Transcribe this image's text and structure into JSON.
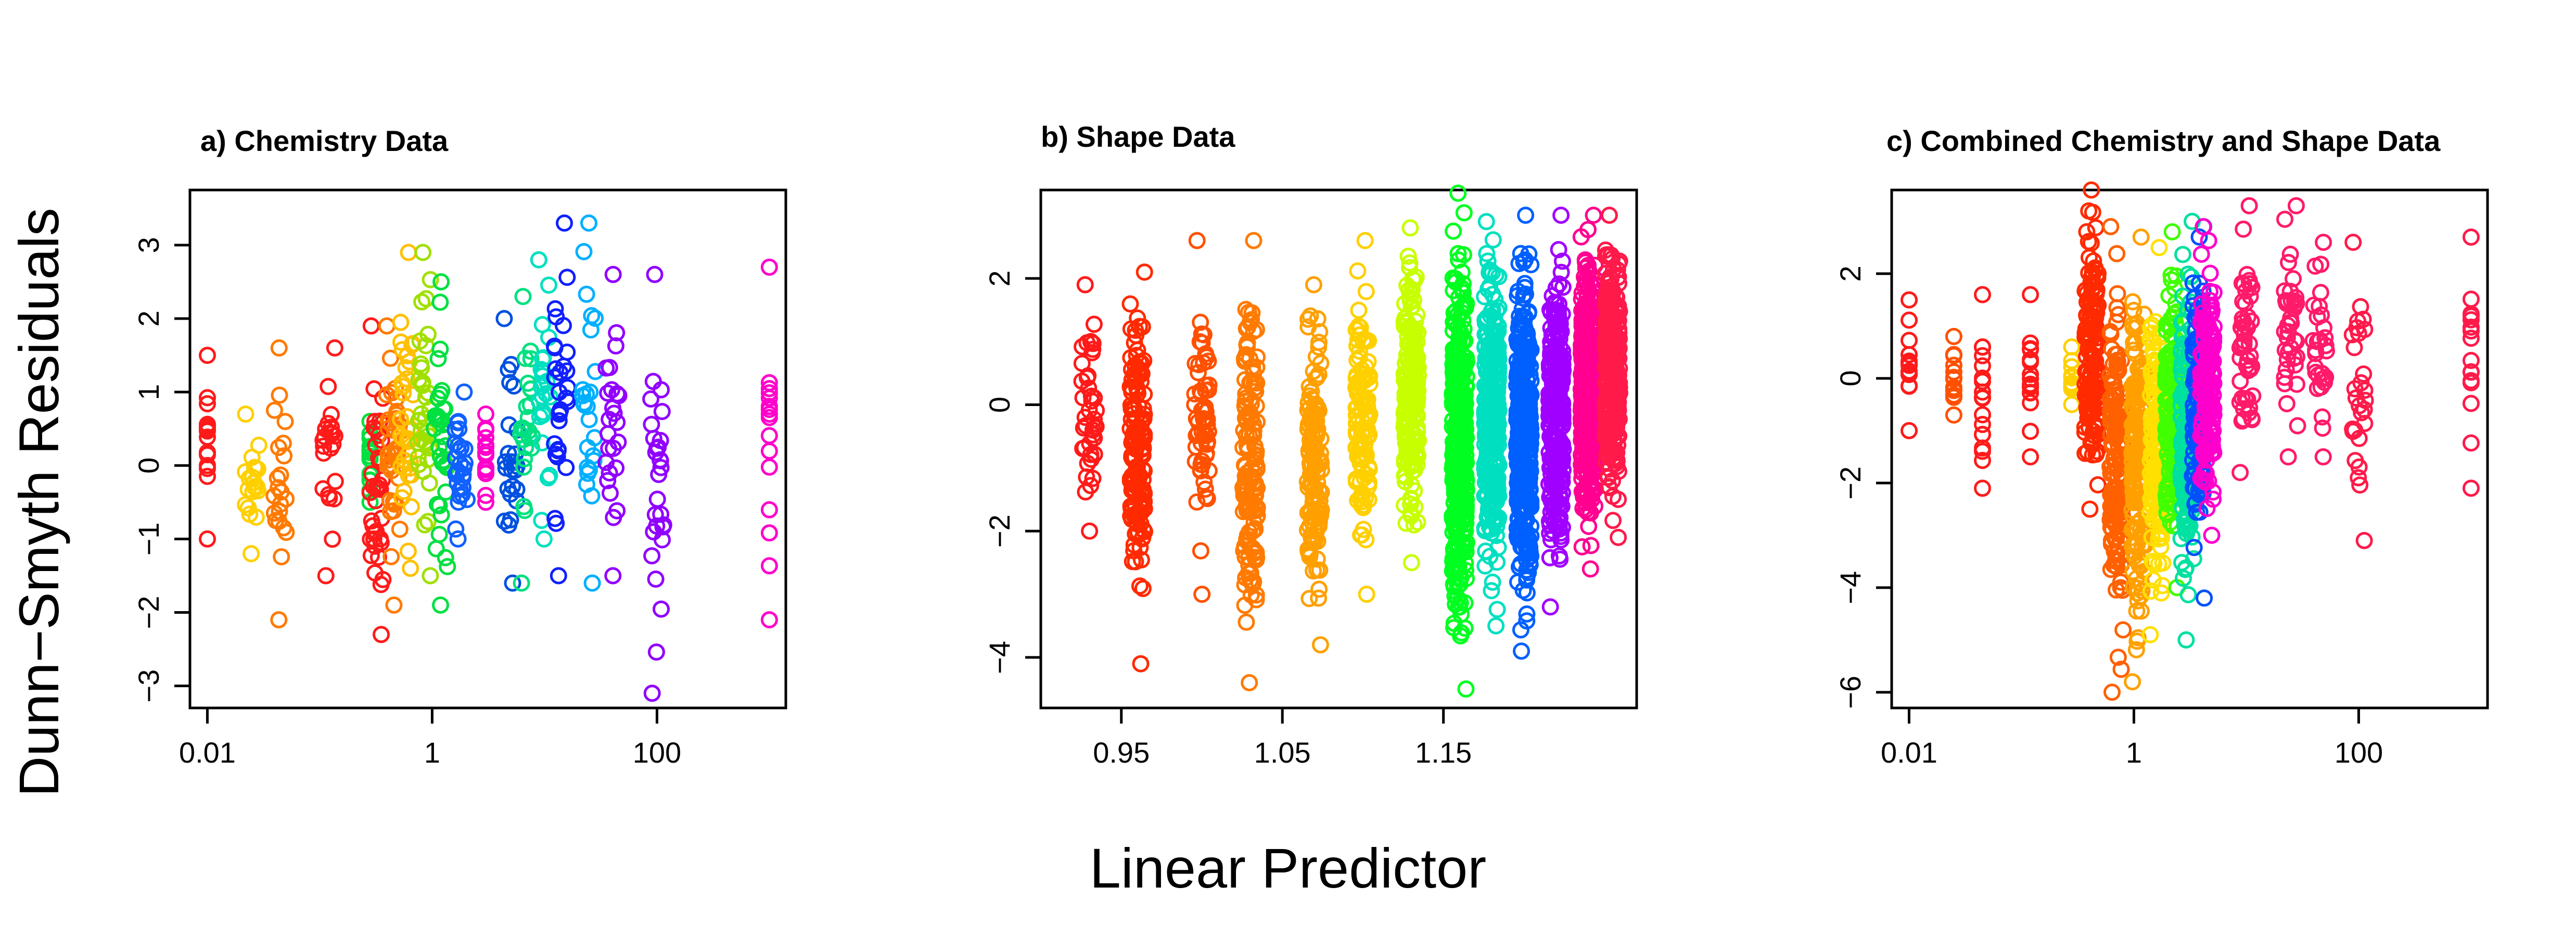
{
  "figure": {
    "ylabel": "Dunn−Smyth Residuals",
    "xlabel": "Linear Predictor"
  },
  "chart_data": [
    {
      "type": "scatter",
      "title": "a)  Chemistry Data",
      "x_scale": "log",
      "xlim": [
        0.007,
        1400
      ],
      "ylim": [
        -3.3,
        3.75
      ],
      "xticks": [
        0.01,
        1,
        100
      ],
      "xtick_labels": [
        "0.01",
        "1",
        "100"
      ],
      "yticks": [
        -3,
        -2,
        -1,
        0,
        1,
        2,
        3
      ],
      "ytick_labels": [
        "−3",
        "−2",
        "−1",
        "0",
        "1",
        "2",
        "3"
      ],
      "clusters": [
        {
          "x": 0.01,
          "n": 16,
          "ymin": -1.0,
          "ymax": 1.5,
          "color": "#ff1a1a"
        },
        {
          "x": 0.025,
          "n": 22,
          "ymin": -1.2,
          "ymax": 0.7,
          "color": "#ffd000"
        },
        {
          "x": 0.045,
          "n": 22,
          "ymin": -2.1,
          "ymax": 1.6,
          "color": "#ff7a00"
        },
        {
          "x": 0.12,
          "n": 22,
          "ymin": -1.5,
          "ymax": 1.6,
          "color": "#ff1a1a"
        },
        {
          "x": 0.28,
          "n": 18,
          "ymin": -0.5,
          "ymax": 0.6,
          "color": "#00e040"
        },
        {
          "x": 0.32,
          "n": 40,
          "ymin": -2.3,
          "ymax": 1.9,
          "color": "#ff1a1a"
        },
        {
          "x": 0.45,
          "n": 40,
          "ymin": -1.9,
          "ymax": 1.9,
          "color": "#ff7a00"
        },
        {
          "x": 0.6,
          "n": 35,
          "ymin": -1.4,
          "ymax": 2.9,
          "color": "#ffc000"
        },
        {
          "x": 0.85,
          "n": 35,
          "ymin": -1.5,
          "ymax": 2.9,
          "color": "#a0e000"
        },
        {
          "x": 1.2,
          "n": 35,
          "ymin": -1.9,
          "ymax": 2.5,
          "color": "#00e040"
        },
        {
          "x": 1.8,
          "n": 30,
          "ymin": -1.0,
          "ymax": 1.0,
          "color": "#1060ff"
        },
        {
          "x": 3.0,
          "n": 16,
          "ymin": -0.5,
          "ymax": 0.7,
          "color": "#ff00cc"
        },
        {
          "x": 5.0,
          "n": 25,
          "ymin": -1.6,
          "ymax": 2.0,
          "color": "#0050e0"
        },
        {
          "x": 7.0,
          "n": 25,
          "ymin": -1.6,
          "ymax": 2.3,
          "color": "#00e080"
        },
        {
          "x": 10.0,
          "n": 25,
          "ymin": -1.0,
          "ymax": 2.8,
          "color": "#00e0c0"
        },
        {
          "x": 14.0,
          "n": 30,
          "ymin": -1.5,
          "ymax": 3.3,
          "color": "#1020ff"
        },
        {
          "x": 25.0,
          "n": 25,
          "ymin": -1.6,
          "ymax": 3.3,
          "color": "#00b0ff"
        },
        {
          "x": 40.0,
          "n": 25,
          "ymin": -1.5,
          "ymax": 2.6,
          "color": "#9000ff"
        },
        {
          "x": 100.0,
          "n": 28,
          "ymin": -3.1,
          "ymax": 2.6,
          "color": "#9000ff"
        },
        {
          "x": 1000.0,
          "n": 16,
          "ymin": -2.1,
          "ymax": 2.7,
          "color": "#ff00cc"
        }
      ]
    },
    {
      "type": "scatter",
      "title": "b)  Shape Data",
      "x_scale": "linear",
      "xlim": [
        0.9,
        1.27
      ],
      "ylim": [
        -4.8,
        3.4
      ],
      "xticks": [
        0.95,
        1.05,
        1.15
      ],
      "xtick_labels": [
        "0.95",
        "1.05",
        "1.15"
      ],
      "yticks": [
        -4,
        -2,
        0,
        2
      ],
      "ytick_labels": [
        "−4",
        "−2",
        "0",
        "2"
      ],
      "clusters": [
        {
          "x": 0.93,
          "n": 40,
          "ymin": -2.0,
          "ymax": 1.9,
          "color": "#ff1a1a"
        },
        {
          "x": 0.96,
          "n": 150,
          "ymin": -4.1,
          "ymax": 2.1,
          "color": "#ff2a00"
        },
        {
          "x": 1.0,
          "n": 60,
          "ymin": -3.0,
          "ymax": 2.6,
          "color": "#ff5000"
        },
        {
          "x": 1.03,
          "n": 140,
          "ymin": -4.4,
          "ymax": 2.6,
          "color": "#ff7a00"
        },
        {
          "x": 1.07,
          "n": 130,
          "ymin": -3.8,
          "ymax": 1.9,
          "color": "#ffa000"
        },
        {
          "x": 1.1,
          "n": 120,
          "ymin": -3.0,
          "ymax": 2.6,
          "color": "#ffd000"
        },
        {
          "x": 1.13,
          "n": 200,
          "ymin": -2.5,
          "ymax": 2.8,
          "color": "#c8ff00"
        },
        {
          "x": 1.16,
          "n": 380,
          "ymin": -4.5,
          "ymax": 3.35,
          "color": "#00ff20"
        },
        {
          "x": 1.18,
          "n": 320,
          "ymin": -3.5,
          "ymax": 2.9,
          "color": "#00e0c0"
        },
        {
          "x": 1.2,
          "n": 380,
          "ymin": -3.9,
          "ymax": 3.0,
          "color": "#0060ff"
        },
        {
          "x": 1.22,
          "n": 280,
          "ymin": -3.2,
          "ymax": 3.0,
          "color": "#a000ff"
        },
        {
          "x": 1.24,
          "n": 420,
          "ymin": -2.6,
          "ymax": 3.0,
          "color": "#ff0090"
        },
        {
          "x": 1.255,
          "n": 280,
          "ymin": -2.1,
          "ymax": 3.0,
          "color": "#ff1a4a"
        }
      ]
    },
    {
      "type": "scatter",
      "title": "c)  Combined Chemistry and Shape Data",
      "x_scale": "log",
      "xlim": [
        0.007,
        1400
      ],
      "ylim": [
        -6.3,
        3.6
      ],
      "xticks": [
        0.01,
        1,
        100
      ],
      "xtick_labels": [
        "0.01",
        "1",
        "100"
      ],
      "yticks": [
        -6,
        -4,
        -2,
        0,
        2
      ],
      "ytick_labels": [
        "−6",
        "−4",
        "−2",
        "0",
        "2"
      ],
      "clusters": [
        {
          "x": 0.01,
          "n": 16,
          "ymin": -1.0,
          "ymax": 1.5,
          "color": "#ff1a1a"
        },
        {
          "x": 0.025,
          "n": 16,
          "ymin": -0.7,
          "ymax": 0.8,
          "color": "#ff5000"
        },
        {
          "x": 0.045,
          "n": 18,
          "ymin": -2.1,
          "ymax": 1.6,
          "color": "#ff1a1a"
        },
        {
          "x": 0.12,
          "n": 18,
          "ymin": -1.5,
          "ymax": 1.6,
          "color": "#ff1a1a"
        },
        {
          "x": 0.28,
          "n": 12,
          "ymin": -0.5,
          "ymax": 0.6,
          "color": "#ffd000"
        },
        {
          "x": 0.42,
          "n": 150,
          "ymin": -2.5,
          "ymax": 3.6,
          "color": "#ff2a00"
        },
        {
          "x": 0.7,
          "n": 180,
          "ymin": -6.0,
          "ymax": 2.9,
          "color": "#ff6000"
        },
        {
          "x": 1.1,
          "n": 180,
          "ymin": -5.8,
          "ymax": 2.7,
          "color": "#ffa000"
        },
        {
          "x": 1.6,
          "n": 160,
          "ymin": -4.9,
          "ymax": 2.5,
          "color": "#ffe000"
        },
        {
          "x": 2.2,
          "n": 160,
          "ymin": -4.0,
          "ymax": 2.8,
          "color": "#40ff00"
        },
        {
          "x": 3.0,
          "n": 160,
          "ymin": -5.0,
          "ymax": 3.0,
          "color": "#00e0a0"
        },
        {
          "x": 3.8,
          "n": 150,
          "ymin": -4.2,
          "ymax": 2.9,
          "color": "#0050ff"
        },
        {
          "x": 4.5,
          "n": 150,
          "ymin": -3.0,
          "ymax": 2.9,
          "color": "#ff00cc"
        },
        {
          "x": 10.0,
          "n": 50,
          "ymin": -1.8,
          "ymax": 3.3,
          "color": "#ff1a6a"
        },
        {
          "x": 25.0,
          "n": 40,
          "ymin": -1.5,
          "ymax": 3.3,
          "color": "#ff1a6a"
        },
        {
          "x": 45.0,
          "n": 30,
          "ymin": -1.5,
          "ymax": 2.6,
          "color": "#ff1a6a"
        },
        {
          "x": 100.0,
          "n": 28,
          "ymin": -3.1,
          "ymax": 2.6,
          "color": "#ff1a4a"
        },
        {
          "x": 1000.0,
          "n": 16,
          "ymin": -2.1,
          "ymax": 2.7,
          "color": "#ff1a4a"
        }
      ]
    }
  ]
}
